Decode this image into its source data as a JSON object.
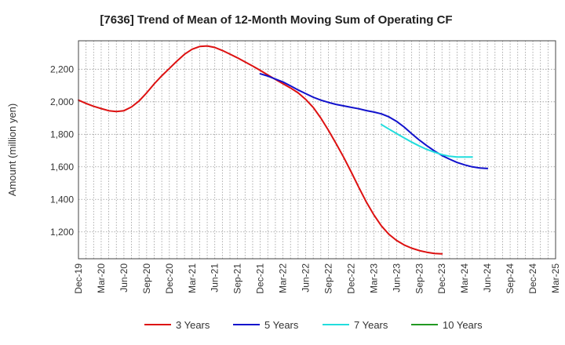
{
  "chart_data": {
    "type": "line",
    "title": "[7636]  Trend of Mean of 12-Month Moving Sum of Operating CF",
    "xlabel": "",
    "ylabel": "Amount (million yen)",
    "x_ticks": [
      "Dec-19",
      "Mar-20",
      "Jun-20",
      "Sep-20",
      "Dec-20",
      "Mar-21",
      "Jun-21",
      "Sep-21",
      "Dec-21",
      "Mar-22",
      "Jun-22",
      "Sep-22",
      "Dec-22",
      "Mar-23",
      "Jun-23",
      "Sep-23",
      "Dec-23",
      "Mar-24",
      "Jun-24",
      "Sep-24",
      "Dec-24",
      "Mar-25"
    ],
    "y_ticks": [
      1200,
      1400,
      1600,
      1800,
      2000,
      2200
    ],
    "y_tick_labels": [
      "1,200",
      "1,400",
      "1,600",
      "1,800",
      "2,000",
      "2,200"
    ],
    "ylim": [
      1035,
      2375
    ],
    "grid": true,
    "legend_position": "bottom",
    "series": [
      {
        "name": "3 Years",
        "color": "#dd1111",
        "start_index": 0,
        "values": [
          2010,
          1990,
          1972,
          1958,
          1945,
          1940,
          1945,
          1968,
          2005,
          2055,
          2110,
          2160,
          2205,
          2250,
          2292,
          2323,
          2340,
          2343,
          2334,
          2315,
          2293,
          2270,
          2245,
          2220,
          2193,
          2165,
          2138,
          2111,
          2085,
          2055,
          2015,
          1965,
          1900,
          1825,
          1745,
          1660,
          1570,
          1475,
          1385,
          1305,
          1237,
          1185,
          1148,
          1120,
          1100,
          1085,
          1075,
          1068,
          1065
        ]
      },
      {
        "name": "5 Years",
        "color": "#1111cc",
        "start_index": 24,
        "values": [
          2172,
          2158,
          2140,
          2122,
          2098,
          2073,
          2050,
          2028,
          2010,
          1996,
          1984,
          1975,
          1966,
          1957,
          1946,
          1937,
          1926,
          1907,
          1880,
          1845,
          1804,
          1765,
          1730,
          1698,
          1670,
          1647,
          1627,
          1612,
          1600,
          1593,
          1590
        ]
      },
      {
        "name": "7 Years",
        "color": "#22dddd",
        "start_index": 40,
        "values": [
          1860,
          1832,
          1805,
          1778,
          1752,
          1728,
          1707,
          1690,
          1675,
          1665,
          1660,
          1660,
          1660
        ]
      },
      {
        "name": "10 Years",
        "color": "#229922",
        "start_index": 0,
        "values": []
      }
    ]
  }
}
